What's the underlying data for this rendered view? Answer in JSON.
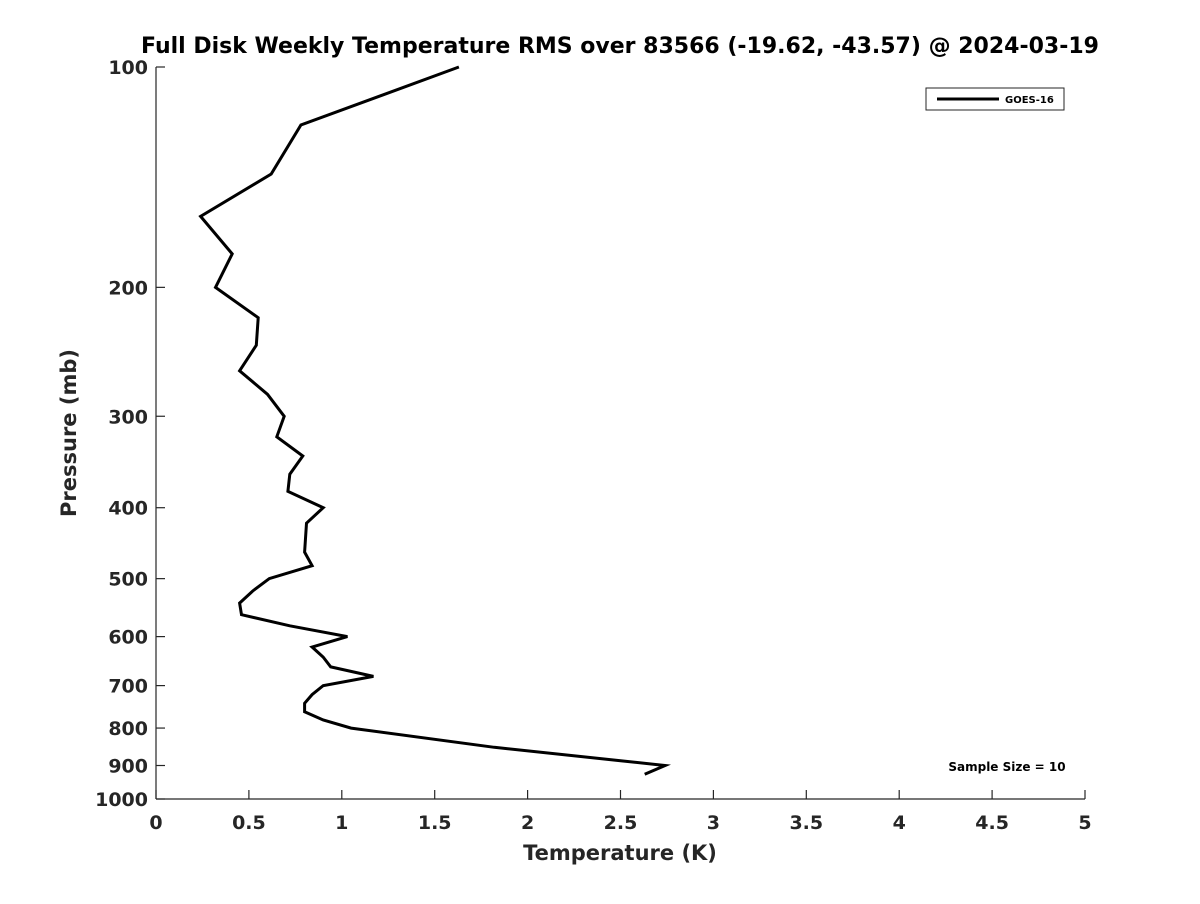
{
  "chart_data": {
    "type": "line",
    "title": "Full Disk Weekly Temperature RMS over 83566 (-19.62, -43.57) @ 2024-03-19",
    "xlabel": "Temperature (K)",
    "ylabel": "Pressure (mb)",
    "xlim": [
      0,
      5
    ],
    "ylim": [
      100,
      1000
    ],
    "yscale": "log",
    "y_reversed": true,
    "grid": false,
    "xticks": [
      0,
      0.5,
      1,
      1.5,
      2,
      2.5,
      3,
      3.5,
      4,
      4.5,
      5
    ],
    "xtick_labels": [
      "0",
      "0.5",
      "1",
      "1.5",
      "2",
      "2.5",
      "3",
      "3.5",
      "4",
      "4.5",
      "5"
    ],
    "yticks": [
      100,
      200,
      300,
      400,
      500,
      600,
      700,
      800,
      900,
      1000
    ],
    "ytick_labels": [
      "100",
      "200",
      "300",
      "400",
      "500",
      "600",
      "700",
      "800",
      "900",
      "1000"
    ],
    "legend": {
      "placement": "top-right",
      "entries": [
        "GOES-16"
      ]
    },
    "annotation": "Sample Size = 10",
    "series": [
      {
        "name": "GOES-16",
        "color": "#000000",
        "x": [
          1.63,
          0.78,
          0.62,
          0.24,
          0.41,
          0.32,
          0.55,
          0.54,
          0.45,
          0.6,
          0.69,
          0.65,
          0.79,
          0.72,
          0.71,
          0.9,
          0.81,
          0.8,
          0.84,
          0.61,
          0.52,
          0.45,
          0.46,
          0.72,
          1.03,
          0.84,
          0.9,
          0.94,
          1.17,
          0.9,
          0.84,
          0.8,
          0.8,
          0.9,
          1.05,
          1.82,
          2.74,
          2.63
        ],
        "y": [
          100,
          120,
          140,
          160,
          180,
          200,
          220,
          240,
          260,
          280,
          300,
          320,
          340,
          360,
          380,
          400,
          420,
          460,
          480,
          500,
          520,
          540,
          560,
          580,
          600,
          620,
          640,
          660,
          680,
          700,
          720,
          740,
          760,
          780,
          800,
          850,
          900,
          925
        ]
      }
    ]
  }
}
